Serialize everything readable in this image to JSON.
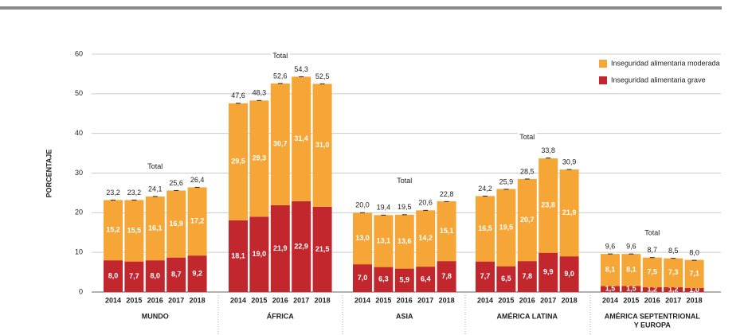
{
  "chart_data": {
    "type": "bar",
    "stacked": true,
    "y_axis_label": "PORCENTAJE",
    "ylim": [
      0,
      60
    ],
    "yticks": [
      0,
      10,
      20,
      30,
      40,
      50,
      60
    ],
    "grid": true,
    "legend_position": "upper right",
    "total_label": "Total",
    "groups": [
      {
        "lines": [
          "MUNDO"
        ],
        "categories": [
          "2014",
          "2015",
          "2016",
          "2017",
          "2018"
        ]
      },
      {
        "lines": [
          "ÁFRICA"
        ],
        "categories": [
          "2014",
          "2015",
          "2016",
          "2017",
          "2018"
        ]
      },
      {
        "lines": [
          "ASIA"
        ],
        "categories": [
          "2014",
          "2015",
          "2016",
          "2017",
          "2018"
        ]
      },
      {
        "lines": [
          "AMÉRICA LATINA"
        ],
        "categories": [
          "2014",
          "2015",
          "2016",
          "2017",
          "2018"
        ]
      },
      {
        "lines": [
          "AMÉRICA SEPTENTRIONAL",
          "Y EUROPA"
        ],
        "categories": [
          "2014",
          "2015",
          "2016",
          "2017",
          "2018"
        ]
      }
    ],
    "series": [
      {
        "name": "Inseguridad alimentaria grave",
        "color": "#c1272d",
        "values": [
          8.0,
          7.7,
          8.0,
          8.7,
          9.2,
          18.1,
          19.0,
          21.9,
          22.9,
          21.5,
          7.0,
          6.3,
          5.9,
          6.4,
          7.8,
          7.7,
          6.5,
          7.8,
          9.9,
          9.0,
          1.5,
          1.5,
          1.2,
          1.2,
          1.0
        ],
        "value_labels": [
          "8,0",
          "7,7",
          "8,0",
          "8,7",
          "9,2",
          "18,1",
          "19,0",
          "21,9",
          "22,9",
          "21,5",
          "7,0",
          "6,3",
          "5,9",
          "6,4",
          "7,8",
          "7,7",
          "6,5",
          "7,8",
          "9,9",
          "9,0",
          "1,5",
          "1,5",
          "1,2",
          "1,2",
          "1,0"
        ]
      },
      {
        "name": "Inseguridad alimentaria moderada",
        "color": "#f5a636",
        "values": [
          15.2,
          15.5,
          16.1,
          16.9,
          17.2,
          29.5,
          29.3,
          30.7,
          31.4,
          31.0,
          13.0,
          13.1,
          13.6,
          14.2,
          15.1,
          16.5,
          19.5,
          20.7,
          23.8,
          21.9,
          8.1,
          8.1,
          7.5,
          7.3,
          7.1
        ],
        "value_labels": [
          "15,2",
          "15,5",
          "16,1",
          "16,9",
          "17,2",
          "29,5",
          "29,3",
          "30,7",
          "31,4",
          "31,0",
          "13,0",
          "13,1",
          "13,6",
          "14,2",
          "15,1",
          "16,5",
          "19,5",
          "20,7",
          "23,8",
          "21,9",
          "8,1",
          "8,1",
          "7,5",
          "7,3",
          "7,1"
        ]
      }
    ],
    "totals": {
      "values": [
        23.2,
        23.2,
        24.1,
        25.6,
        26.4,
        47.6,
        48.3,
        52.6,
        54.3,
        52.5,
        20.0,
        19.4,
        19.5,
        20.6,
        22.8,
        24.2,
        25.9,
        28.5,
        33.8,
        30.9,
        9.6,
        9.6,
        8.7,
        8.5,
        8.0
      ],
      "value_labels": [
        "23,2",
        "23,2",
        "24,1",
        "25,6",
        "26,4",
        "47,6",
        "48,3",
        "52,6",
        "54,3",
        "52,5",
        "20,0",
        "19,4",
        "19,5",
        "20,6",
        "22,8",
        "24,2",
        "25,9",
        "28,5",
        "33,8",
        "30,9",
        "9,6",
        "9,6",
        "8,7",
        "8,5",
        "8,0"
      ]
    }
  }
}
